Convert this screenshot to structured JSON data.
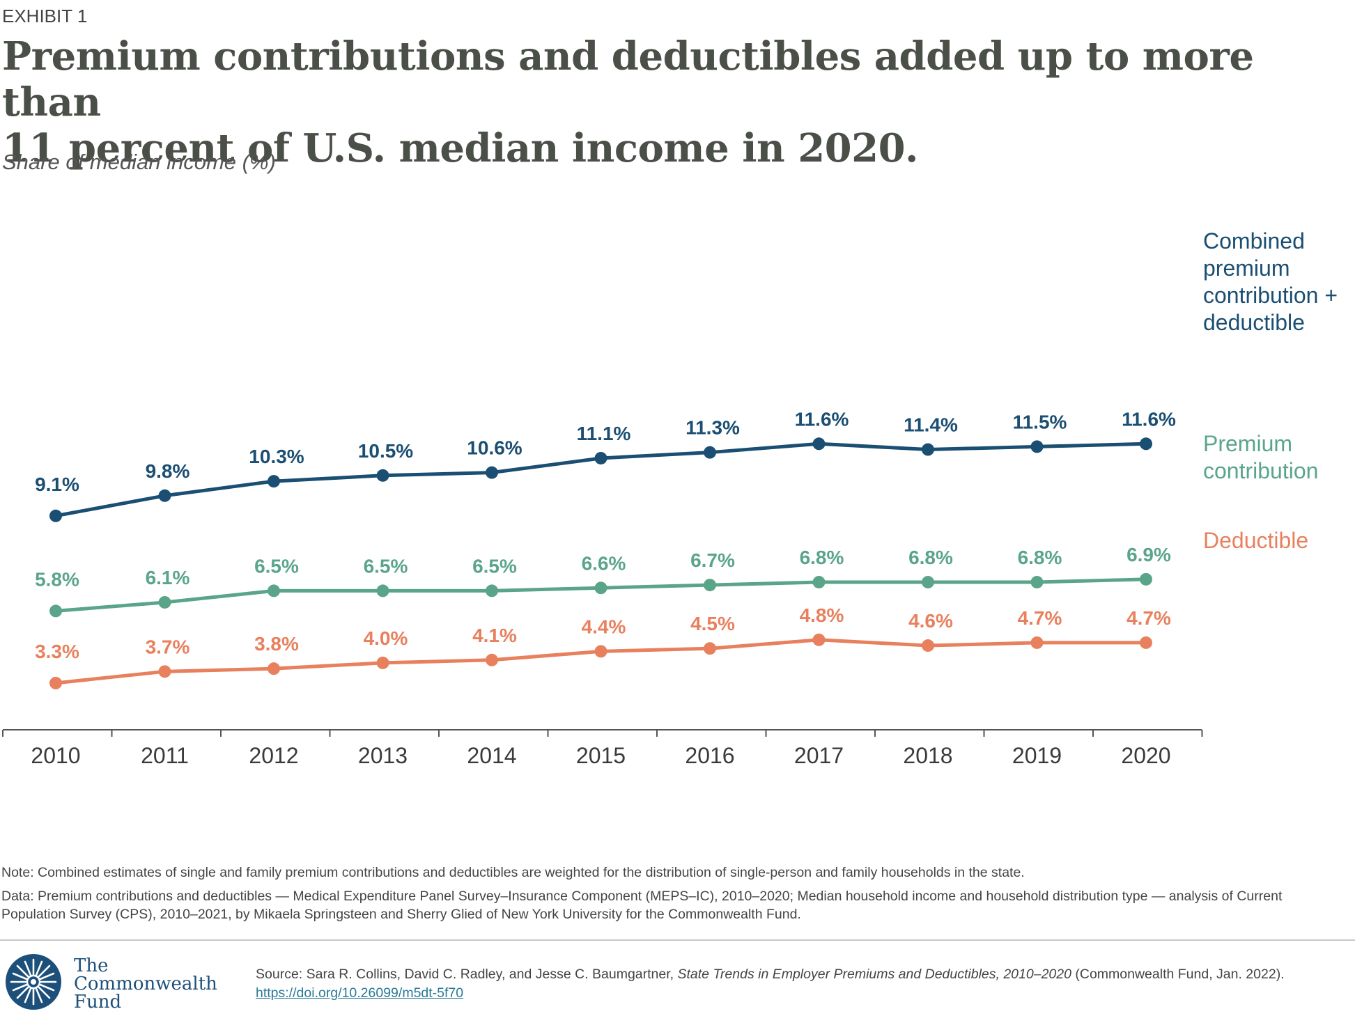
{
  "header": {
    "exhibit": "EXHIBIT 1",
    "title_line1": "Premium contributions and deductibles added up to more than",
    "title_line2": "11 percent of U.S. median income in 2020.",
    "subtitle": "Share of median income (%)"
  },
  "chart_data": {
    "type": "line",
    "title": "Premium contributions and deductibles added up to more than 11 percent of U.S. median income in 2020.",
    "ylabel": "Share of median income (%)",
    "xlabel": "",
    "categories": [
      "2010",
      "2011",
      "2012",
      "2013",
      "2014",
      "2015",
      "2016",
      "2017",
      "2018",
      "2019",
      "2020"
    ],
    "ylim": [
      0,
      14
    ],
    "grid": false,
    "legend_placement": "right, inline labels",
    "series": [
      {
        "name": "Combined premium contribution + deductible",
        "label_lines": [
          "Combined",
          "premium",
          "contribution +",
          "deductible"
        ],
        "color": "#1a4e72",
        "values": [
          9.1,
          9.8,
          10.3,
          10.5,
          10.6,
          11.1,
          11.3,
          11.6,
          11.4,
          11.5,
          11.6
        ],
        "labels": [
          "9.1%",
          "9.8%",
          "10.3%",
          "10.5%",
          "10.6%",
          "11.1%",
          "11.3%",
          "11.6%",
          "11.4%",
          "11.5%",
          "11.6%"
        ]
      },
      {
        "name": "Premium contribution",
        "label_lines": [
          "Premium",
          "contribution"
        ],
        "color": "#5aa58a",
        "values": [
          5.8,
          6.1,
          6.5,
          6.5,
          6.5,
          6.6,
          6.7,
          6.8,
          6.8,
          6.8,
          6.9
        ],
        "labels": [
          "5.8%",
          "6.1%",
          "6.5%",
          "6.5%",
          "6.5%",
          "6.6%",
          "6.7%",
          "6.8%",
          "6.8%",
          "6.8%",
          "6.9%"
        ]
      },
      {
        "name": "Deductible",
        "label_lines": [
          "Deductible"
        ],
        "color": "#e8805e",
        "values": [
          3.3,
          3.7,
          3.8,
          4.0,
          4.1,
          4.4,
          4.5,
          4.8,
          4.6,
          4.7,
          4.7
        ],
        "labels": [
          "3.3%",
          "3.7%",
          "3.8%",
          "4.0%",
          "4.1%",
          "4.4%",
          "4.5%",
          "4.8%",
          "4.6%",
          "4.7%",
          "4.7%"
        ]
      }
    ]
  },
  "footer": {
    "note": "Note: Combined estimates of single and family premium contributions and deductibles are weighted for the distribution of single-person and family households in the state.",
    "data_line": "Data: Premium contributions and deductibles — Medical Expenditure Panel Survey–Insurance Component (MEPS–IC), 2010–2020; Median household income and household distribution type — analysis of Current Population Survey (CPS), 2010–2021, by Mikaela Springsteen and Sherry Glied of New York University for the Commonwealth Fund.",
    "source_prefix": "Source: Sara R. Collins, David C. Radley, and Jesse C. Baumgartner, ",
    "source_title": "State Trends in Employer Premiums and Deductibles, 2010–2020",
    "source_suffix": " (Commonwealth Fund, Jan. 2022). ",
    "source_link": "https://doi.org/10.26099/m5dt-5f70",
    "logo_line1": "The",
    "logo_line2": "Commonwealth",
    "logo_line3": "Fund",
    "logo_icon": "snowflake-star-icon",
    "logo_color": "#1c4f7a"
  }
}
